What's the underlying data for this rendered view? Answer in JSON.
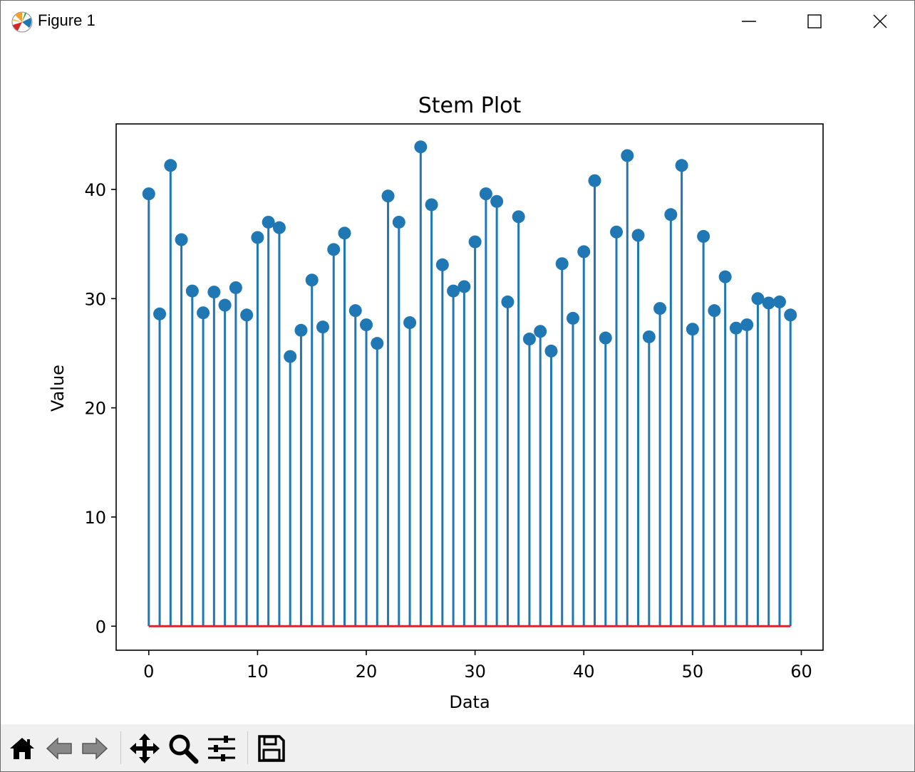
{
  "window": {
    "title": "Figure 1",
    "app_icon": "matplotlib-logo-icon",
    "controls": [
      "minimize-icon",
      "maximize-icon",
      "close-icon"
    ]
  },
  "toolbar": {
    "tools": [
      "home-icon",
      "back-arrow-icon",
      "forward-arrow-icon",
      "pan-move-icon",
      "zoom-magnifier-icon",
      "configure-subplots-icon",
      "save-floppy-icon"
    ]
  },
  "chart_data": {
    "type": "stem",
    "title": "Stem Plot",
    "xlabel": "Data",
    "ylabel": "Value",
    "xlim": [
      -3,
      62
    ],
    "ylim": [
      -2.2,
      46
    ],
    "xticks": [
      0,
      10,
      20,
      30,
      40,
      50,
      60
    ],
    "yticks": [
      0,
      10,
      20,
      30,
      40
    ],
    "grid": false,
    "colors": {
      "stem": "#1f77b4",
      "marker": "#1f77b4",
      "baseline": "#d62728"
    },
    "x": [
      0,
      1,
      2,
      3,
      4,
      5,
      6,
      7,
      8,
      9,
      10,
      11,
      12,
      13,
      14,
      15,
      16,
      17,
      18,
      19,
      20,
      21,
      22,
      23,
      24,
      25,
      26,
      27,
      28,
      29,
      30,
      31,
      32,
      33,
      34,
      35,
      36,
      37,
      38,
      39,
      40,
      41,
      42,
      43,
      44,
      45,
      46,
      47,
      48,
      49,
      50,
      51,
      52,
      53,
      54,
      55,
      56,
      57,
      58,
      59
    ],
    "values": [
      39.6,
      28.6,
      42.2,
      35.4,
      30.7,
      28.7,
      30.6,
      29.4,
      31.0,
      28.5,
      35.6,
      37.0,
      36.5,
      24.7,
      27.1,
      31.7,
      27.4,
      34.5,
      36.0,
      28.9,
      27.6,
      25.9,
      39.4,
      37.0,
      27.8,
      43.9,
      38.6,
      33.1,
      30.7,
      31.1,
      35.2,
      39.6,
      38.9,
      29.7,
      37.5,
      26.3,
      27.0,
      25.2,
      33.2,
      28.2,
      34.3,
      40.8,
      26.4,
      36.1,
      43.1,
      35.8,
      26.5,
      29.1,
      37.7,
      42.2,
      27.2,
      35.7,
      28.9,
      32.0,
      27.3,
      27.6,
      30.0,
      29.6,
      29.7,
      28.5
    ]
  }
}
